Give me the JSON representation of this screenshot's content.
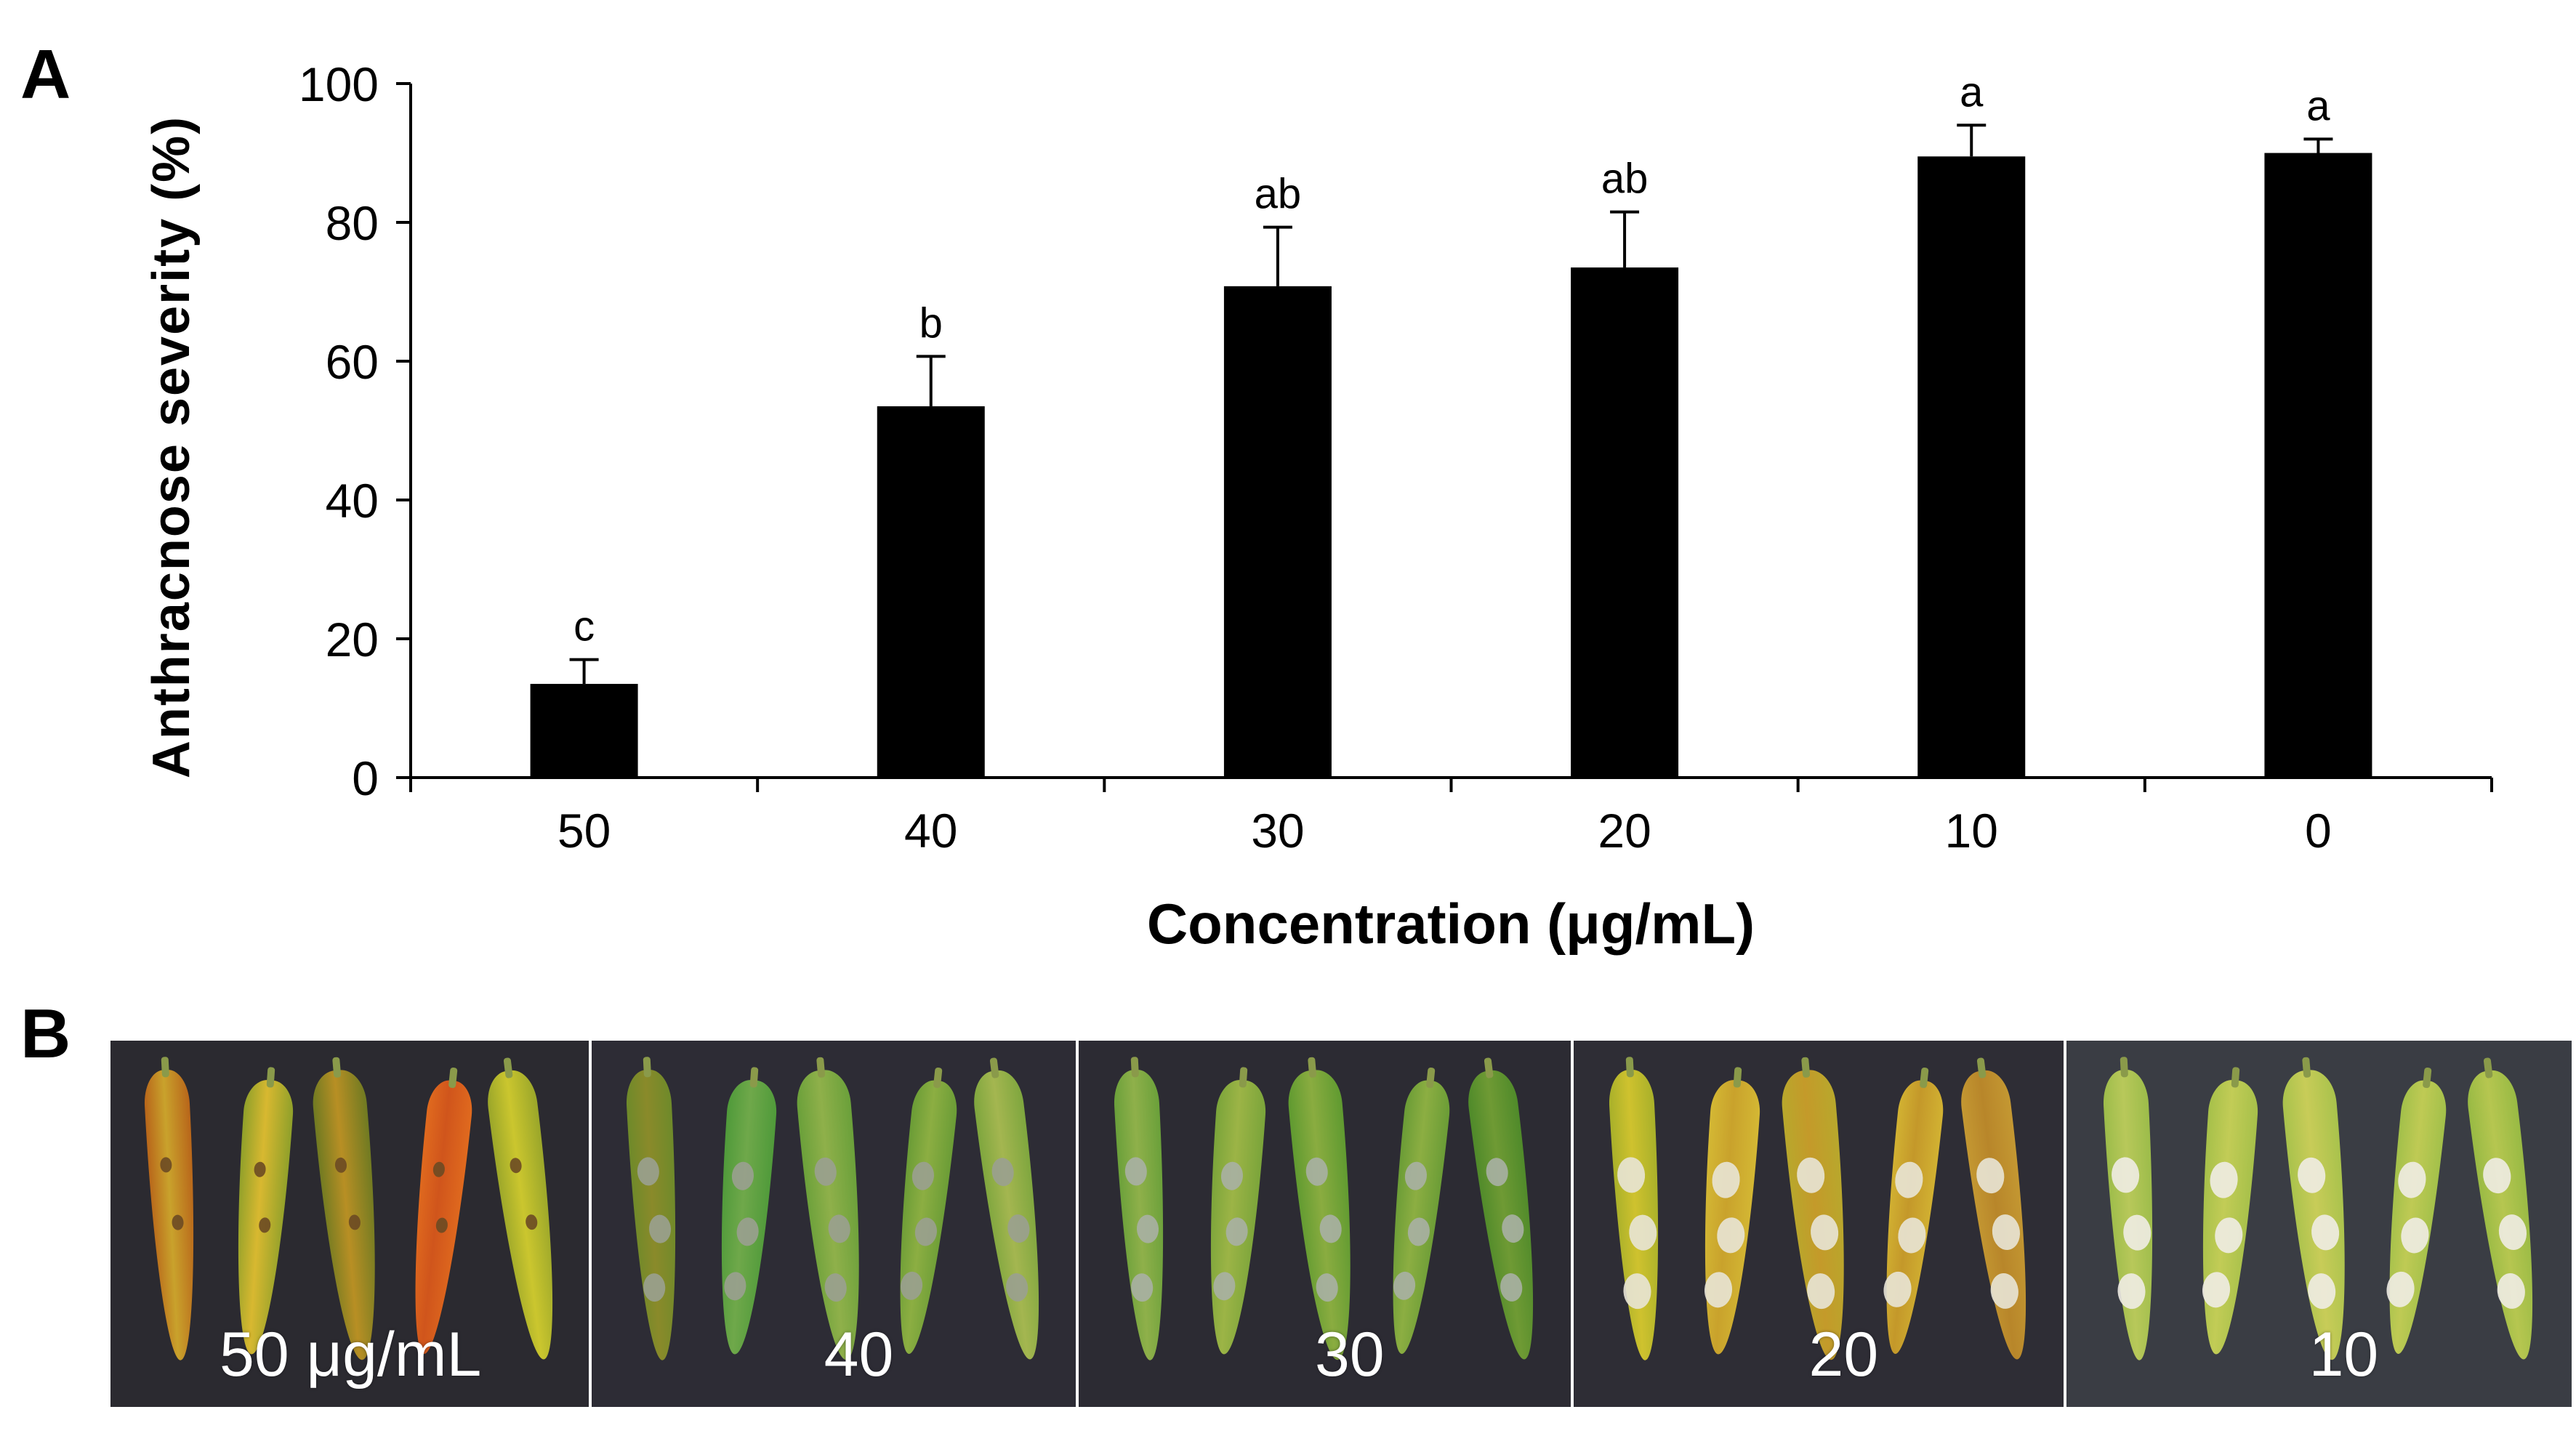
{
  "panel_a_label": "A",
  "panel_b_label": "B",
  "chart_data": {
    "type": "bar",
    "title": "",
    "xlabel": "Concentration (μg/mL)",
    "ylabel": "Anthracnose severity (%)",
    "ylim": [
      0,
      100
    ],
    "yticks": [
      0,
      20,
      40,
      60,
      80,
      100
    ],
    "categories": [
      "50",
      "40",
      "30",
      "20",
      "10",
      "0"
    ],
    "values": [
      13.5,
      53.5,
      70.8,
      73.5,
      89.5,
      90.0
    ],
    "errors": [
      3.5,
      7.2,
      8.5,
      8.0,
      4.5,
      2.0
    ],
    "significance_letters": [
      "c",
      "b",
      "ab",
      "ab",
      "a",
      "a"
    ],
    "bar_color": "#000000",
    "grid": false
  },
  "photos": [
    {
      "label": "50 μg/mL",
      "background": "#2b2a30"
    },
    {
      "label": "40",
      "background": "#2d2c35"
    },
    {
      "label": "30",
      "background": "#2c2b33"
    },
    {
      "label": "20",
      "background": "#2e2d35"
    },
    {
      "label": "10",
      "background": "#3a3d44"
    }
  ]
}
